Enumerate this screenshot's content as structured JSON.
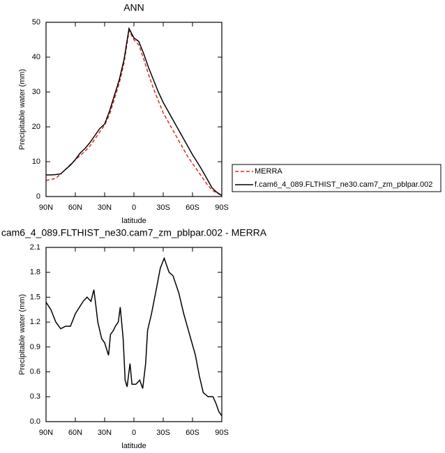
{
  "chart_data": [
    {
      "type": "line",
      "title": "ANN",
      "xlabel": "latitude",
      "ylabel": "Precipitable water (mm)",
      "xlim": [
        90,
        -90
      ],
      "xticks": [
        {
          "value": 90,
          "label": "90N"
        },
        {
          "value": 60,
          "label": "60N"
        },
        {
          "value": 30,
          "label": "30N"
        },
        0,
        {
          "value": -30,
          "label": "30S"
        },
        {
          "value": -60,
          "label": "60S"
        },
        {
          "value": -90,
          "label": "90S"
        }
      ],
      "ylim": [
        0,
        50
      ],
      "yticks": [
        0,
        10,
        20,
        30,
        40,
        50
      ],
      "x": [
        90,
        85,
        80,
        75,
        70,
        65,
        60,
        55,
        50,
        45,
        40,
        35,
        30,
        25,
        20,
        15,
        10,
        5,
        0,
        -5,
        -10,
        -15,
        -20,
        -25,
        -30,
        -35,
        -40,
        -45,
        -50,
        -55,
        -60,
        -65,
        -70,
        -75,
        -80,
        -85,
        -90
      ],
      "legend": "outside-right",
      "series": [
        {
          "name": "MERRA",
          "color": "#e8251f",
          "style": "dashed",
          "values": [
            4.6,
            4.9,
            5.2,
            6.5,
            7.8,
            9.2,
            10.5,
            11.8,
            13,
            14.5,
            16.5,
            18.5,
            20.5,
            23.5,
            28,
            32.5,
            38.5,
            47.6,
            45,
            43.5,
            39.5,
            35,
            31,
            27.5,
            24,
            21.5,
            19,
            16.5,
            14,
            11.5,
            9.5,
            7.5,
            5.5,
            3.5,
            1.8,
            1,
            0.3
          ]
        },
        {
          "name": "f.cam6_4_089.FLTHIST_ne30.cam7_zm_pblpar.002",
          "color": "#000000",
          "style": "solid",
          "values": [
            6.2,
            6.2,
            6.3,
            6.5,
            7.8,
            9,
            10.6,
            12.5,
            13.8,
            15.5,
            17.5,
            19.5,
            20.8,
            24.5,
            29,
            33.5,
            39.5,
            48.2,
            45.5,
            44.5,
            41,
            37,
            33.5,
            30,
            27,
            24.5,
            22,
            19.5,
            17,
            14.5,
            12,
            9.8,
            7.5,
            5,
            2.5,
            1.2,
            0.3
          ]
        }
      ]
    },
    {
      "type": "line",
      "title": "cam6_4_089.FLTHIST_ne30.cam7_zm_pblpar.002 - MERRA",
      "xlabel": "latitude",
      "ylabel": "Precipitable water (mm)",
      "xlim": [
        90,
        -90
      ],
      "xticks": [
        {
          "value": 90,
          "label": "90N"
        },
        {
          "value": 60,
          "label": "60N"
        },
        {
          "value": 30,
          "label": "30N"
        },
        0,
        {
          "value": -30,
          "label": "30S"
        },
        {
          "value": -60,
          "label": "60S"
        },
        {
          "value": -90,
          "label": "90S"
        }
      ],
      "ylim": [
        0,
        2.1
      ],
      "yticks": [
        {
          "value": 0,
          "label": "0.0"
        },
        0.3,
        0.6,
        0.9,
        1.2,
        1.5,
        1.8,
        2.1
      ],
      "x": [
        90,
        85,
        80,
        75,
        70,
        65,
        60,
        52,
        48,
        44,
        41,
        39,
        37,
        33,
        30,
        26,
        24,
        21,
        19,
        16,
        14,
        11,
        9,
        7,
        4,
        2,
        -2,
        -6,
        -9,
        -12,
        -14,
        -18,
        -23,
        -27,
        -31,
        -36,
        -40,
        -46,
        -51,
        -57,
        -63,
        -67,
        -71,
        -76,
        -81,
        -84,
        -87,
        -90
      ],
      "series": [
        {
          "color": "#000000",
          "style": "solid",
          "values": [
            1.44,
            1.35,
            1.2,
            1.12,
            1.15,
            1.15,
            1.3,
            1.45,
            1.5,
            1.45,
            1.59,
            1.4,
            1.2,
            1.0,
            0.95,
            0.8,
            1.05,
            1.1,
            1.15,
            1.2,
            1.38,
            1.0,
            0.5,
            0.42,
            0.7,
            0.45,
            0.45,
            0.5,
            0.4,
            0.7,
            1.1,
            1.3,
            1.6,
            1.85,
            1.97,
            1.8,
            1.76,
            1.55,
            1.3,
            1.05,
            0.8,
            0.55,
            0.35,
            0.3,
            0.3,
            0.22,
            0.12,
            0.07
          ]
        }
      ]
    }
  ]
}
